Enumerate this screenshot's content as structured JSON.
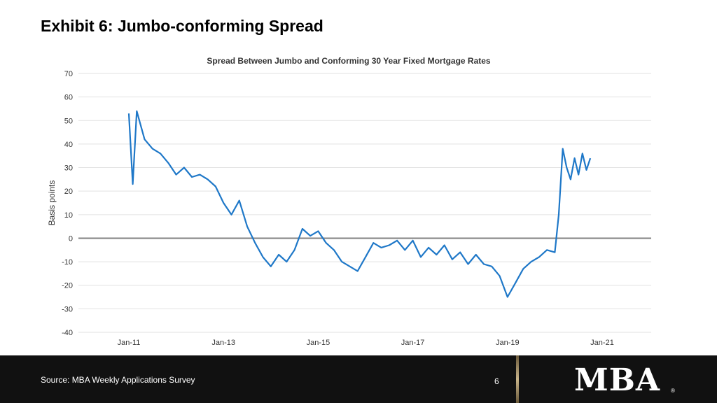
{
  "slide": {
    "title": "Exhibit 6: Jumbo-conforming Spread"
  },
  "footer": {
    "source": "Source: MBA Weekly Applications Survey",
    "page_number": "6",
    "logo_text": "MBA",
    "logo_reg": "®"
  },
  "colors": {
    "series": "#1f78c8",
    "zero_line": "#808080",
    "grid": "#e2e2e2",
    "footer_bg": "#111111"
  },
  "chart_data": {
    "type": "line",
    "title": "Spread Between Jumbo and Conforming 30 Year Fixed Mortgage Rates",
    "ylabel": "Basis points",
    "xlabel": "",
    "ylim": [
      -40,
      70
    ],
    "yticks": [
      "70",
      "60",
      "50",
      "40",
      "30",
      "20",
      "10",
      "0",
      "-10",
      "-20",
      "-30",
      "-40"
    ],
    "xticks": [
      "Jan-11",
      "Jan-13",
      "Jan-15",
      "Jan-17",
      "Jan-19",
      "Jan-21"
    ],
    "xrange": [
      "2011-01",
      "2021-01"
    ],
    "grid": true,
    "legend": "none",
    "series": [
      {
        "x": [
          "2011-01",
          "2011-02",
          "2011-03",
          "2011-05",
          "2011-07",
          "2011-09",
          "2011-11",
          "2012-01",
          "2012-03",
          "2012-05",
          "2012-07",
          "2012-09",
          "2012-11",
          "2013-01",
          "2013-03",
          "2013-05",
          "2013-07",
          "2013-09",
          "2013-11",
          "2014-01",
          "2014-03",
          "2014-05",
          "2014-07",
          "2014-09",
          "2014-11",
          "2015-01",
          "2015-03",
          "2015-05",
          "2015-07",
          "2015-09",
          "2015-11",
          "2016-01",
          "2016-03",
          "2016-05",
          "2016-07",
          "2016-09",
          "2016-11",
          "2017-01",
          "2017-03",
          "2017-05",
          "2017-07",
          "2017-09",
          "2017-11",
          "2018-01",
          "2018-03",
          "2018-05",
          "2018-07",
          "2018-09",
          "2018-11",
          "2019-01",
          "2019-03",
          "2019-05",
          "2019-07",
          "2019-09",
          "2019-11",
          "2020-01",
          "2020-02",
          "2020-03",
          "2020-04",
          "2020-05",
          "2020-06",
          "2020-07",
          "2020-08",
          "2020-09",
          "2020-10"
        ],
        "values": [
          53,
          23,
          54,
          42,
          38,
          36,
          32,
          27,
          30,
          26,
          27,
          25,
          22,
          15,
          10,
          16,
          5,
          -2,
          -8,
          -12,
          -7,
          -10,
          -5,
          4,
          1,
          3,
          -2,
          -5,
          -10,
          -12,
          -14,
          -8,
          -2,
          -4,
          -3,
          -1,
          -5,
          -1,
          -8,
          -4,
          -7,
          -3,
          -9,
          -6,
          -11,
          -7,
          -11,
          -12,
          -16,
          -25,
          -19,
          -13,
          -10,
          -8,
          -5,
          -6,
          10,
          38,
          30,
          25,
          34,
          27,
          36,
          29,
          34
        ]
      }
    ]
  }
}
